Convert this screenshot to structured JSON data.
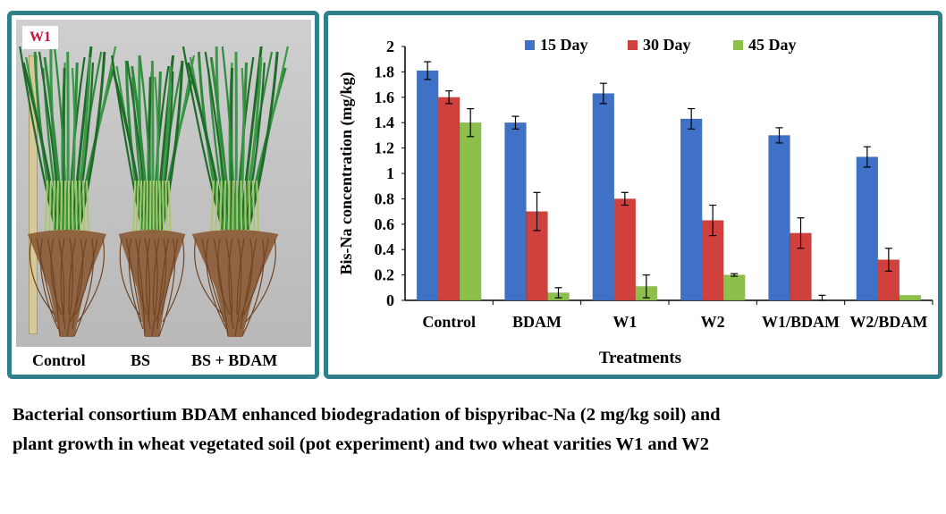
{
  "photo": {
    "badge": "W1",
    "labels": [
      "Control",
      "BS",
      "BS + BDAM"
    ]
  },
  "colors": {
    "frame": "#2f7f8c",
    "badge_text": "#c0143c"
  },
  "chart_data": {
    "type": "bar",
    "ylabel": "Bis-Na concentration (mg/kg)",
    "xlabel": "Treatments",
    "categories": [
      "Control",
      "BDAM",
      "W1",
      "W2",
      "W1/BDAM",
      "W2/BDAM"
    ],
    "ylim": [
      0,
      2
    ],
    "yticks": [
      "0",
      "0.2",
      "0.4",
      "0.6",
      "0.8",
      "1",
      "1.2",
      "1.4",
      "1.6",
      "1.8",
      "2"
    ],
    "legend_position": "top",
    "grid": false,
    "series": [
      {
        "name": "15 Day",
        "color": "#3f72c6",
        "values": [
          1.81,
          1.4,
          1.63,
          1.43,
          1.3,
          1.13
        ],
        "errors": [
          0.07,
          0.05,
          0.08,
          0.08,
          0.06,
          0.08
        ]
      },
      {
        "name": "30 Day",
        "color": "#d0403d",
        "values": [
          1.6,
          0.7,
          0.8,
          0.63,
          0.53,
          0.32
        ],
        "errors": [
          0.05,
          0.15,
          0.05,
          0.12,
          0.12,
          0.09
        ]
      },
      {
        "name": "45 Day",
        "color": "#8cc04a",
        "values": [
          1.4,
          0.06,
          0.11,
          0.2,
          0.0,
          0.04
        ],
        "errors": [
          0.11,
          0.04,
          0.09,
          0.01,
          0.04,
          0.0
        ]
      }
    ]
  },
  "caption": {
    "line1": "Bacterial consortium BDAM enhanced biodegradation of bispyribac-Na (2 mg/kg soil) and",
    "line2": "plant growth in wheat vegetated soil (pot experiment) and two wheat varities W1 and W2"
  }
}
